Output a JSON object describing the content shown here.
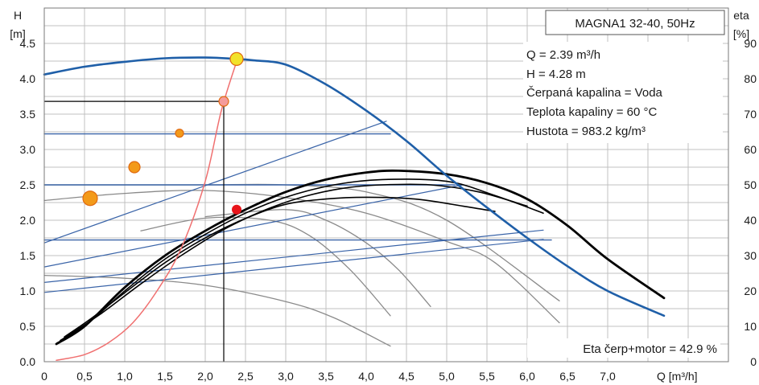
{
  "chart_data": {
    "type": "line",
    "title": "MAGNA1 32-40, 50Hz",
    "xlabel": "Q [m³/h]",
    "ylabel_left": "H",
    "ylabel_left_unit": "[m]",
    "ylabel_right": "eta",
    "ylabel_right_unit": "[%]",
    "xlim": [
      0,
      8.5
    ],
    "ylim_left": [
      0,
      5.0
    ],
    "ylim_right": [
      0,
      100
    ],
    "x_ticks": [
      "0",
      "0,5",
      "1,0",
      "1,5",
      "2,0",
      "2,5",
      "3,0",
      "3,5",
      "4,0",
      "4,5",
      "5,0",
      "5,5",
      "6,0",
      "6,5",
      "7,0"
    ],
    "y_left_ticks": [
      "0.0",
      "0.5",
      "1.0",
      "1.5",
      "2.0",
      "2.5",
      "3.0",
      "3.5",
      "4.0",
      "4.5"
    ],
    "y_right_ticks": [
      "0",
      "10",
      "20",
      "30",
      "40",
      "50",
      "60",
      "70",
      "80",
      "90"
    ],
    "grid": true,
    "info_lines": [
      "Q = 2.39 m³/h",
      "H = 4.28 m",
      "Čerpaná kapalina = Voda",
      "Teplota kapaliny = 60 °C",
      "Hustota = 983.2 kg/m³"
    ],
    "eta_label": "Eta čerp+motor = 42.9 %",
    "colors": {
      "head_curve": "#1f5fa8",
      "control_lines": "#3a64a8",
      "efficiency": "#000000",
      "system_curve": "#f07070",
      "duty_point": "#f2e22a",
      "eta_point": "#e8141a",
      "markers": "#f39a1a",
      "grid": "#c0c0c0"
    },
    "series": [
      {
        "role": "max-head",
        "x": [
          0,
          0.5,
          1.0,
          1.5,
          2.0,
          2.39,
          2.6,
          3.0,
          3.5,
          4.0,
          4.5,
          5.0,
          5.5,
          6.0,
          6.5,
          7.0,
          7.7
        ],
        "values": [
          4.06,
          4.17,
          4.24,
          4.29,
          4.3,
          4.28,
          4.26,
          4.2,
          3.92,
          3.55,
          3.12,
          2.63,
          2.18,
          1.75,
          1.35,
          1.0,
          0.65
        ]
      },
      {
        "role": "constant-pressure",
        "x": [
          0,
          4.3
        ],
        "values": [
          3.22,
          3.22
        ]
      },
      {
        "role": "constant-pressure",
        "x": [
          0,
          5.1
        ],
        "values": [
          2.5,
          2.5
        ]
      },
      {
        "role": "constant-pressure",
        "x": [
          0,
          6.3
        ],
        "values": [
          1.72,
          1.72
        ]
      },
      {
        "role": "proportional-pressure",
        "x": [
          0,
          4.25
        ],
        "values": [
          1.68,
          3.4
        ]
      },
      {
        "role": "proportional-pressure",
        "x": [
          0,
          5.2
        ],
        "values": [
          1.34,
          2.5
        ]
      },
      {
        "role": "proportional-pressure",
        "x": [
          0,
          6.2
        ],
        "values": [
          1.12,
          1.86
        ]
      },
      {
        "role": "proportional-pressure",
        "x": [
          0,
          6.2
        ],
        "values": [
          0.98,
          1.73
        ]
      },
      {
        "role": "reduced-speed",
        "x": [
          0,
          1.0,
          2.0,
          3.0,
          4.0,
          5.0,
          5.6,
          6.4
        ],
        "values": [
          2.28,
          2.38,
          2.42,
          2.32,
          2.1,
          1.7,
          1.4,
          0.55
        ]
      },
      {
        "role": "reduced-speed",
        "x": [
          0,
          1.0,
          2.0,
          3.0,
          4.0,
          5.0,
          6.4
        ],
        "values": [
          2.5,
          2.5,
          2.5,
          2.5,
          2.4,
          2.0,
          0.86
        ]
      },
      {
        "role": "reduced-speed",
        "x": [
          0,
          1.0,
          2.0,
          3.0,
          3.6,
          4.3
        ],
        "values": [
          1.22,
          1.18,
          1.08,
          0.85,
          0.62,
          0.22
        ]
      },
      {
        "role": "reduced-speed",
        "x": [
          1.2,
          2.0,
          2.8,
          3.3,
          3.8,
          4.3
        ],
        "values": [
          1.85,
          2.03,
          2.0,
          1.78,
          1.3,
          0.65
        ]
      },
      {
        "role": "reduced-speed",
        "x": [
          2.0,
          3.0,
          3.5,
          4.0,
          4.4,
          4.8
        ],
        "values": [
          2.05,
          2.15,
          2.0,
          1.68,
          1.3,
          0.78
        ]
      },
      {
        "role": "efficiency",
        "x": [
          0.15,
          0.5,
          1.0,
          1.5,
          2.0,
          2.5,
          3.0,
          3.5,
          4.0,
          4.4,
          5.0,
          5.5,
          6.0,
          6.5,
          7.0,
          7.7
        ],
        "values": [
          5,
          10,
          21,
          30,
          37,
          43,
          48,
          51.5,
          53.5,
          54,
          53,
          50.5,
          46,
          38.5,
          29,
          18
        ]
      },
      {
        "role": "efficiency",
        "x": [
          0.2,
          0.6,
          1.0,
          1.5,
          2.0,
          2.5,
          3.0,
          3.6,
          4.2,
          5.0,
          5.6,
          6.2
        ],
        "values": [
          6,
          12,
          20,
          29,
          36,
          42,
          46.5,
          50,
          51.5,
          51,
          47,
          42
        ]
      },
      {
        "role": "efficiency",
        "x": [
          0.25,
          0.6,
          1.0,
          1.5,
          2.0,
          2.5,
          3.0,
          3.5,
          4.0,
          4.6,
          5.2,
          5.6
        ],
        "values": [
          7,
          12.5,
          19.5,
          28,
          35,
          40.5,
          44.5,
          46,
          46.5,
          46,
          44,
          42.5
        ]
      },
      {
        "role": "efficiency",
        "x": [
          0.3,
          0.7,
          1.2,
          1.7,
          2.2,
          2.7,
          3.2,
          3.7,
          4.2,
          4.8,
          5.4,
          6.0
        ],
        "values": [
          7.5,
          13.5,
          22,
          30,
          37,
          42.5,
          46.5,
          49,
          50,
          50,
          48,
          44
        ]
      },
      {
        "role": "system-curve",
        "x": [
          0.15,
          0.5,
          0.8,
          1.1,
          1.4,
          1.7,
          2.0,
          2.2,
          2.4
        ],
        "values": [
          0.02,
          0.1,
          0.27,
          0.55,
          1.0,
          1.6,
          2.55,
          3.55,
          4.28
        ]
      }
    ],
    "markers": [
      {
        "role": "duty-point",
        "x": 2.39,
        "y": 4.28,
        "color": "#f2e22a",
        "size": 8
      },
      {
        "role": "operating-point",
        "x": 2.23,
        "y": 3.68,
        "color": "#f49b9b",
        "size": 6
      },
      {
        "role": "eta-point",
        "x": 2.39,
        "y": 2.15,
        "color": "#e8141a",
        "size": 6
      },
      {
        "role": "setpoint",
        "x": 1.68,
        "y": 3.23,
        "color": "#f39a1a",
        "size": 5
      },
      {
        "role": "setpoint",
        "x": 1.12,
        "y": 2.75,
        "color": "#f39a1a",
        "size": 7
      },
      {
        "role": "setpoint",
        "x": 0.57,
        "y": 2.31,
        "color": "#f39a1a",
        "size": 9
      }
    ],
    "reference": {
      "x": 2.23,
      "y": 3.68
    }
  }
}
